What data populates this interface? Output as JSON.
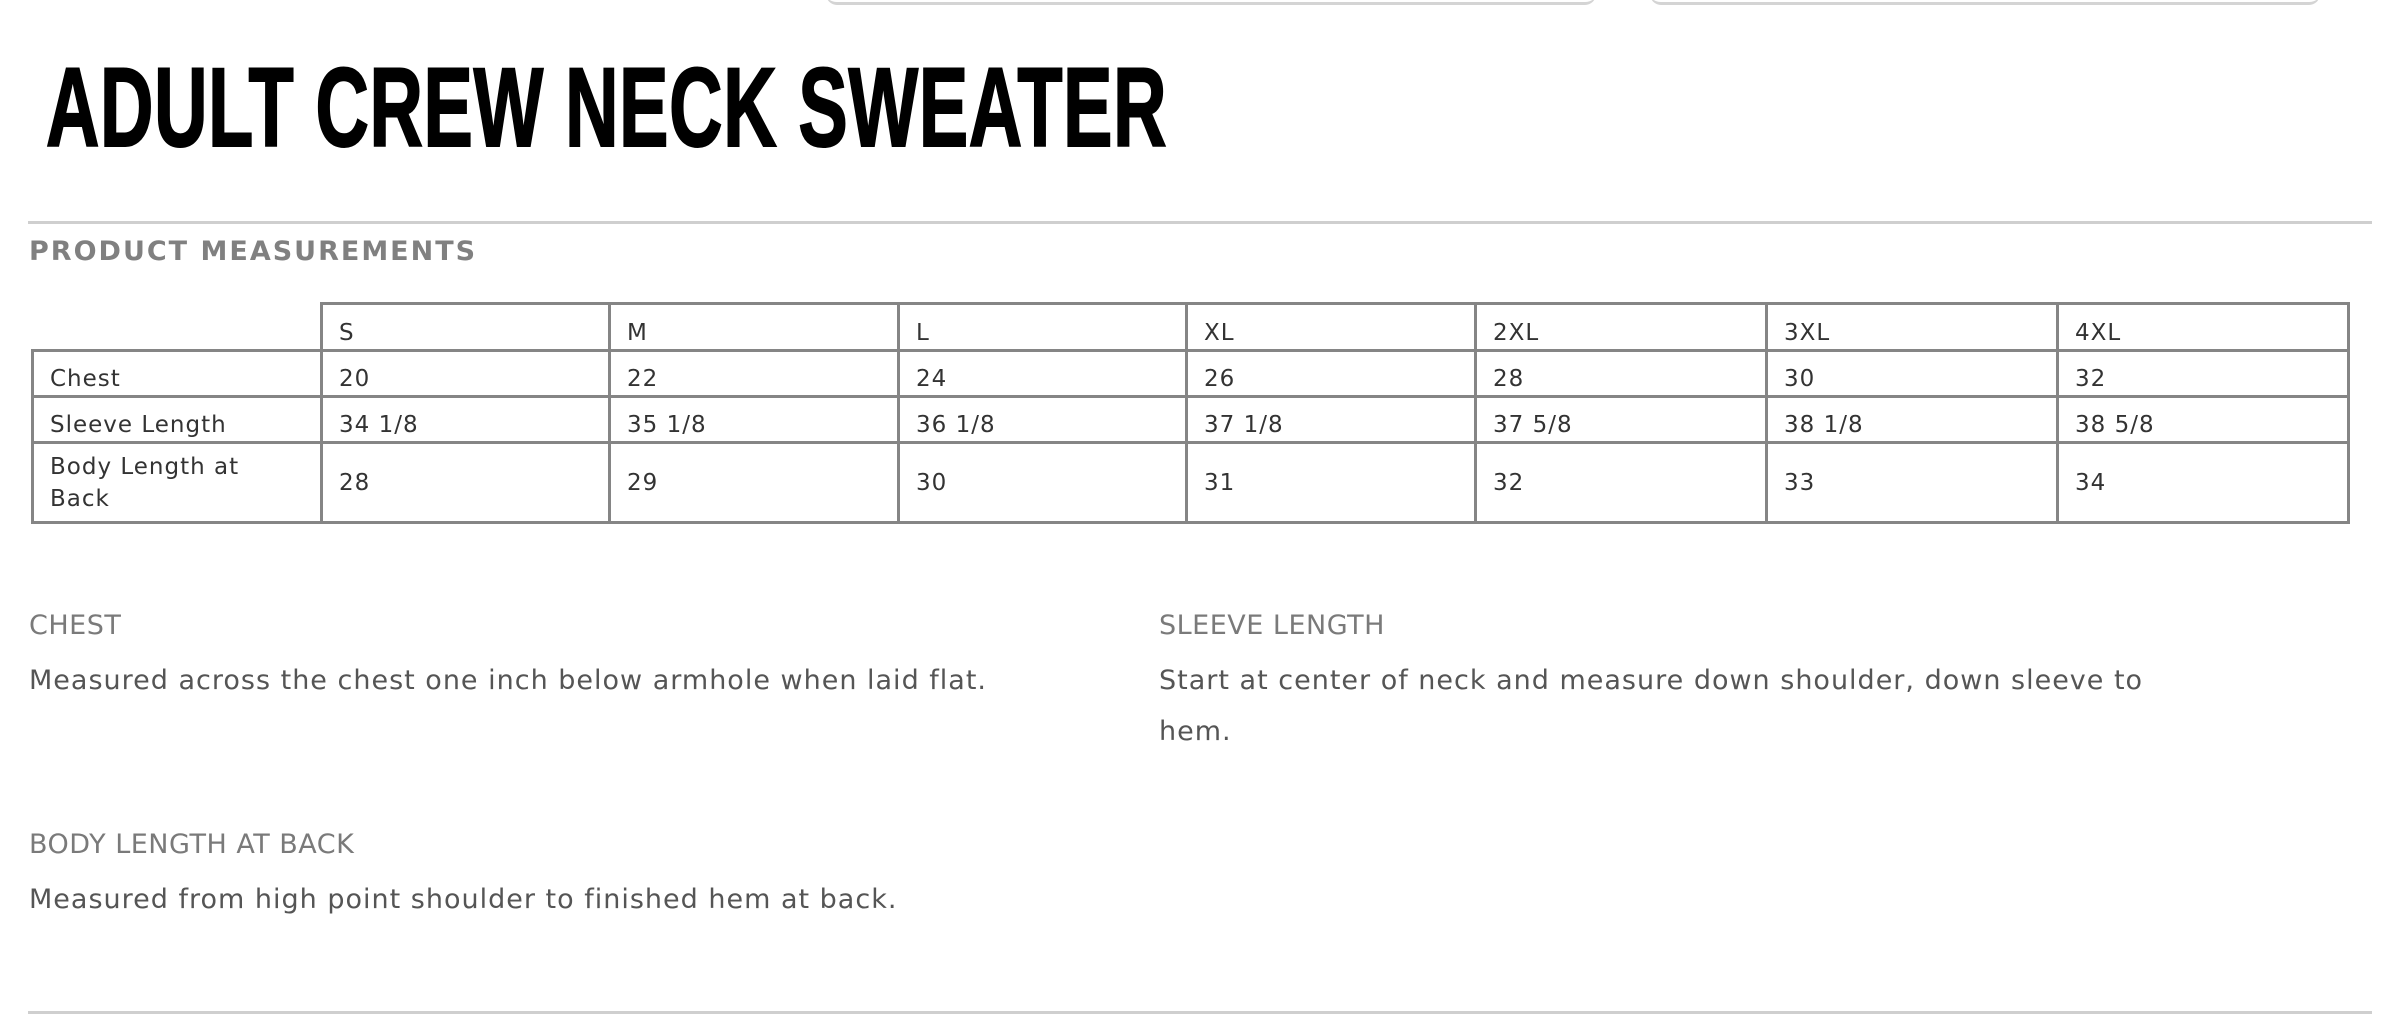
{
  "title": "ADULT CREW NECK SWEATER",
  "section_title": "PRODUCT MEASUREMENTS",
  "table": {
    "sizes": [
      "S",
      "M",
      "L",
      "XL",
      "2XL",
      "3XL",
      "4XL"
    ],
    "rows": [
      {
        "label": "Chest",
        "values": [
          "20",
          "22",
          "24",
          "26",
          "28",
          "30",
          "32"
        ]
      },
      {
        "label": "Sleeve Length",
        "values": [
          "34 1/8",
          "35 1/8",
          "36 1/8",
          "37 1/8",
          "37 5/8",
          "38 1/8",
          "38 5/8"
        ]
      },
      {
        "label": "Body Length at Back",
        "values": [
          "28",
          "29",
          "30",
          "31",
          "32",
          "33",
          "34"
        ]
      }
    ]
  },
  "definitions": [
    {
      "term": "CHEST",
      "description": "Measured across the chest one inch below armhole when laid flat."
    },
    {
      "term": "SLEEVE LENGTH",
      "description": "Start at center of neck and measure down shoulder, down sleeve to hem."
    },
    {
      "term": "BODY LENGTH AT BACK",
      "description": "Measured from high point shoulder to finished hem at back."
    }
  ]
}
